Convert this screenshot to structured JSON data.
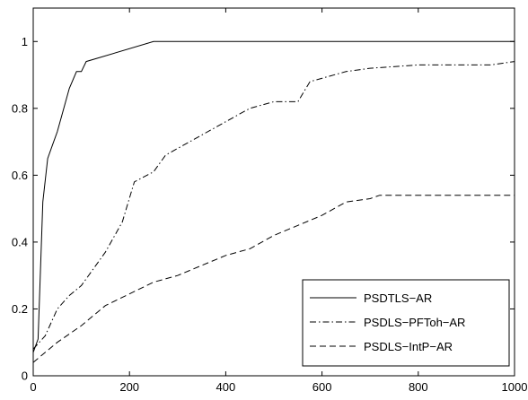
{
  "chart_data": {
    "type": "line",
    "title": "",
    "xlabel": "",
    "ylabel": "",
    "xlim": [
      0,
      1000
    ],
    "ylim": [
      0,
      1.1
    ],
    "xticks": [
      0,
      200,
      400,
      600,
      800,
      1000
    ],
    "xtick_labels": [
      "0",
      "200",
      "400",
      "600",
      "800",
      "1000"
    ],
    "yticks": [
      0,
      0.2,
      0.4,
      0.6,
      0.8,
      1
    ],
    "ytick_labels": [
      "0",
      "0.2",
      "0.4",
      "0.6",
      "0.8",
      "1"
    ],
    "grid": false,
    "legend_position": "bottom-right",
    "series": [
      {
        "name": "PSDTLS−AR",
        "line_style": "solid",
        "color": "#000000",
        "x": [
          0,
          10,
          20,
          30,
          40,
          50,
          75,
          90,
          100,
          110,
          250,
          300,
          350,
          1000
        ],
        "y": [
          0.07,
          0.11,
          0.52,
          0.65,
          0.69,
          0.73,
          0.86,
          0.91,
          0.91,
          0.94,
          1.0,
          1.0,
          1.0,
          1.0
        ]
      },
      {
        "name": "PSDLS−PFToh−AR",
        "line_style": "dashdot",
        "color": "#000000",
        "x": [
          0,
          25,
          50,
          75,
          100,
          150,
          185,
          210,
          250,
          275,
          300,
          350,
          400,
          450,
          500,
          550,
          575,
          650,
          700,
          800,
          850,
          950,
          1000
        ],
        "y": [
          0.08,
          0.12,
          0.2,
          0.24,
          0.27,
          0.37,
          0.46,
          0.58,
          0.61,
          0.66,
          0.68,
          0.72,
          0.76,
          0.8,
          0.82,
          0.82,
          0.88,
          0.91,
          0.92,
          0.93,
          0.93,
          0.93,
          0.94
        ]
      },
      {
        "name": "PSDLS−IntP−AR",
        "line_style": "dashed",
        "color": "#000000",
        "x": [
          0,
          25,
          50,
          100,
          150,
          250,
          300,
          400,
          450,
          500,
          550,
          600,
          650,
          700,
          720,
          750,
          800,
          900,
          1000
        ],
        "y": [
          0.04,
          0.07,
          0.1,
          0.15,
          0.21,
          0.28,
          0.3,
          0.36,
          0.38,
          0.42,
          0.45,
          0.48,
          0.52,
          0.53,
          0.54,
          0.54,
          0.54,
          0.54,
          0.54
        ]
      }
    ]
  }
}
